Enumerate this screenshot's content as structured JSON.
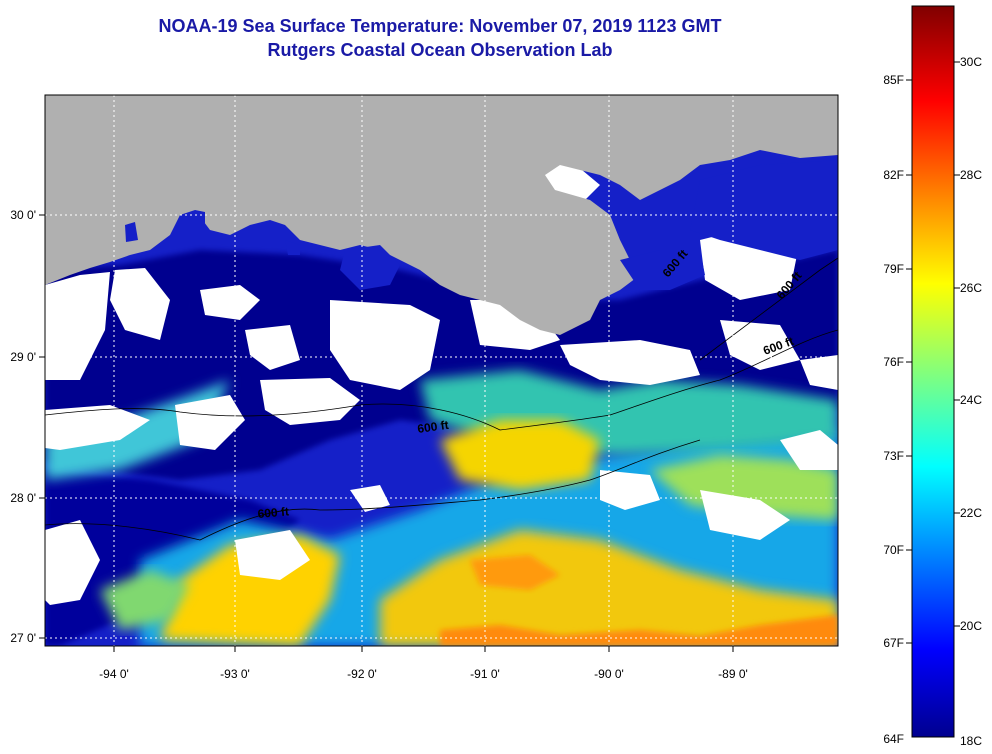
{
  "title": {
    "line1": "NOAA-19 Sea Surface Temperature:  November 07, 2019 1123 GMT",
    "line2": "Rutgers Coastal Ocean Observation Lab"
  },
  "map": {
    "lon_labels": [
      "-94 0'",
      "-93 0'",
      "-92 0'",
      "-91 0'",
      "-90 0'",
      "-89 0'"
    ],
    "lat_labels": [
      "30 0'",
      "29 0'",
      "28 0'",
      "27 0'"
    ],
    "contour_labels": [
      "600 ft",
      "600 ft",
      "600 ft",
      "600 ft",
      "600 ft"
    ],
    "colors": {
      "land": "#b0b0b0",
      "cloud": "#ffffff",
      "cold": "#00008f",
      "warm": "#ffd200"
    }
  },
  "colorbar": {
    "fahrenheit": [
      "85F",
      "82F",
      "79F",
      "76F",
      "73F",
      "70F",
      "67F",
      "64F"
    ],
    "celsius": [
      "30C",
      "28C",
      "26C",
      "24C",
      "22C",
      "20C",
      "18C"
    ]
  }
}
